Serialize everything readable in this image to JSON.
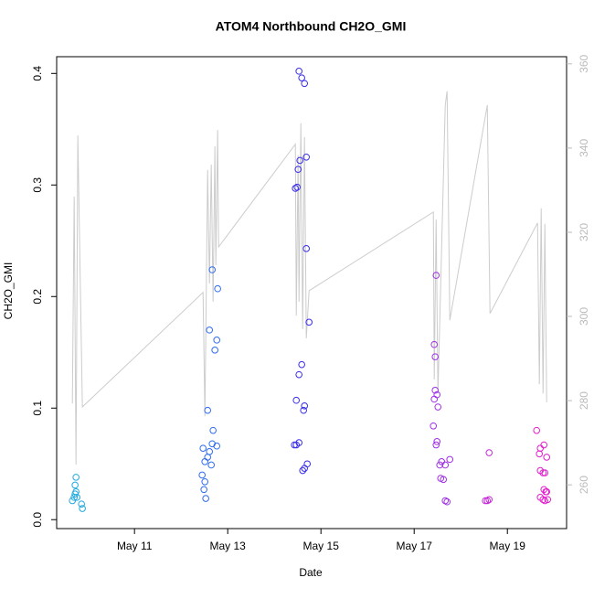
{
  "chart_data": {
    "type": "scatter",
    "title": "ATOM4 Northbound CH2O_GMI",
    "x_label": "Date",
    "y_label": "CH2O_GMI",
    "xlim": [
      9.33,
      20.27
    ],
    "ylim": [
      -0.008,
      0.415
    ],
    "y2lim": [
      249.6,
      361.7
    ],
    "xticks": [
      {
        "value": 11,
        "label": "May 11"
      },
      {
        "value": 13,
        "label": "May 13"
      },
      {
        "value": 15,
        "label": "May 15"
      },
      {
        "value": 17,
        "label": "May 17"
      },
      {
        "value": 19,
        "label": "May 19"
      }
    ],
    "yticks": [
      {
        "value": 0,
        "label": "0.0"
      },
      0.1,
      0.2,
      0.3,
      0.4
    ],
    "y2ticks": [
      260,
      280,
      300,
      320,
      340,
      360
    ],
    "series": [
      {
        "type": "scatter",
        "x": [
          9.745,
          9.725,
          9.745,
          9.725,
          9.706,
          9.765,
          9.667,
          9.863,
          9.882,
          12.667,
          12.784,
          12.608,
          12.765,
          12.725,
          12.569,
          12.686,
          12.667,
          12.765,
          12.471,
          12.608,
          12.569,
          12.51,
          12.647,
          12.451,
          12.51,
          12.49,
          12.529,
          14.529,
          14.588,
          14.647,
          14.549,
          14.686,
          14.51,
          14.49,
          14.451,
          14.686,
          14.745,
          14.588,
          14.529,
          14.471,
          14.647,
          14.627,
          14.471,
          14.529,
          14.431,
          14.706,
          14.647,
          14.608,
          17.471,
          17.431,
          17.451,
          17.451,
          17.49,
          17.431,
          17.51,
          17.412,
          17.49,
          17.471,
          17.765,
          17.588,
          17.549,
          17.667,
          17.569,
          17.627,
          17.667,
          17.706,
          18.608,
          18.529,
          18.569,
          18.608,
          19.627,
          19.784,
          19.706,
          19.686,
          19.843,
          19.706,
          19.765,
          19.804,
          19.784,
          19.824,
          19.843,
          19.706,
          19.765,
          19.804,
          19.863
        ],
        "values": [
          0.038,
          0.031,
          0.025,
          0.023,
          0.02,
          0.02,
          0.017,
          0.014,
          0.01,
          0.224,
          0.207,
          0.17,
          0.161,
          0.152,
          0.098,
          0.08,
          0.068,
          0.066,
          0.064,
          0.061,
          0.056,
          0.052,
          0.049,
          0.04,
          0.034,
          0.027,
          0.019,
          0.402,
          0.396,
          0.391,
          0.322,
          0.325,
          0.314,
          0.298,
          0.297,
          0.243,
          0.177,
          0.139,
          0.13,
          0.107,
          0.102,
          0.098,
          0.067,
          0.069,
          0.067,
          0.05,
          0.046,
          0.044,
          0.219,
          0.157,
          0.146,
          0.116,
          0.112,
          0.108,
          0.101,
          0.084,
          0.07,
          0.067,
          0.054,
          0.052,
          0.049,
          0.049,
          0.037,
          0.036,
          0.017,
          0.016,
          0.06,
          0.017,
          0.017,
          0.018,
          0.08,
          0.067,
          0.064,
          0.059,
          0.056,
          0.044,
          0.042,
          0.042,
          0.027,
          0.025,
          0.025,
          0.02,
          0.018,
          0.017,
          0.018
        ],
        "colors": [
          "#22a8e0",
          "#22a8e0",
          "#22a8e0",
          "#22a8e0",
          "#22a8e0",
          "#22a8e0",
          "#22a8e0",
          "#22a8e0",
          "#22a8e0",
          "#2f6cf0",
          "#2f6cf0",
          "#2f6cf0",
          "#2f6cf0",
          "#2f6cf0",
          "#2f6cf0",
          "#2f6cf0",
          "#2f6cf0",
          "#2f6cf0",
          "#2f6cf0",
          "#2f6cf0",
          "#2f6cf0",
          "#2f6cf0",
          "#2f6cf0",
          "#2f6cf0",
          "#2f6cf0",
          "#2f6cf0",
          "#2f6cf0",
          "#3a2ee8",
          "#3a2ee8",
          "#3a2ee8",
          "#3a2ee8",
          "#3a2ee8",
          "#3a2ee8",
          "#3a2ee8",
          "#3a2ee8",
          "#3a2ee8",
          "#3a2ee8",
          "#3a2ee8",
          "#3a2ee8",
          "#3a2ee8",
          "#3a2ee8",
          "#3a2ee8",
          "#3a2ee8",
          "#3a2ee8",
          "#3a2ee8",
          "#3a2ee8",
          "#3a2ee8",
          "#3a2ee8",
          "#a030e6",
          "#a030e6",
          "#a030e6",
          "#a030e6",
          "#a030e6",
          "#a030e6",
          "#a030e6",
          "#a030e6",
          "#a030e6",
          "#a030e6",
          "#a030e6",
          "#a030e6",
          "#a030e6",
          "#a030e6",
          "#a030e6",
          "#a030e6",
          "#a030e6",
          "#a030e6",
          "#c52ad8",
          "#c52ad8",
          "#c52ad8",
          "#c52ad8",
          "#e11ecb",
          "#e11ecb",
          "#e11ecb",
          "#e11ecb",
          "#e11ecb",
          "#e11ecb",
          "#e11ecb",
          "#e11ecb",
          "#e11ecb",
          "#e11ecb",
          "#e11ecb",
          "#e11ecb",
          "#e11ecb",
          "#e11ecb",
          "#e11ecb"
        ]
      },
      {
        "type": "line",
        "axis": "y2",
        "color": "#cccccc",
        "x": [
          9.667,
          9.706,
          9.745,
          9.784,
          9.882,
          12.471,
          12.51,
          12.569,
          12.608,
          12.647,
          12.686,
          12.725,
          12.745,
          12.784,
          12.804,
          14.451,
          14.471,
          14.51,
          14.529,
          14.569,
          14.608,
          14.647,
          14.686,
          14.745,
          17.412,
          17.431,
          17.471,
          17.51,
          17.667,
          17.706,
          17.765,
          18.569,
          18.627,
          19.647,
          19.686,
          19.725,
          19.765,
          19.804,
          19.843
        ],
        "values": [
          279.3,
          328.5,
          264.8,
          343.0,
          278.5,
          305.7,
          276.3,
          334.8,
          307.8,
          336.1,
          303.5,
          340.4,
          312.2,
          344.3,
          316.5,
          340.9,
          300.2,
          338.3,
          303.5,
          345.9,
          297.0,
          342.6,
          294.8,
          306.1,
          324.8,
          285.0,
          323.0,
          281.7,
          350.2,
          353.5,
          299.1,
          350.2,
          300.7,
          322.2,
          283.9,
          325.7,
          281.7,
          322.0,
          279.6
        ]
      }
    ]
  }
}
